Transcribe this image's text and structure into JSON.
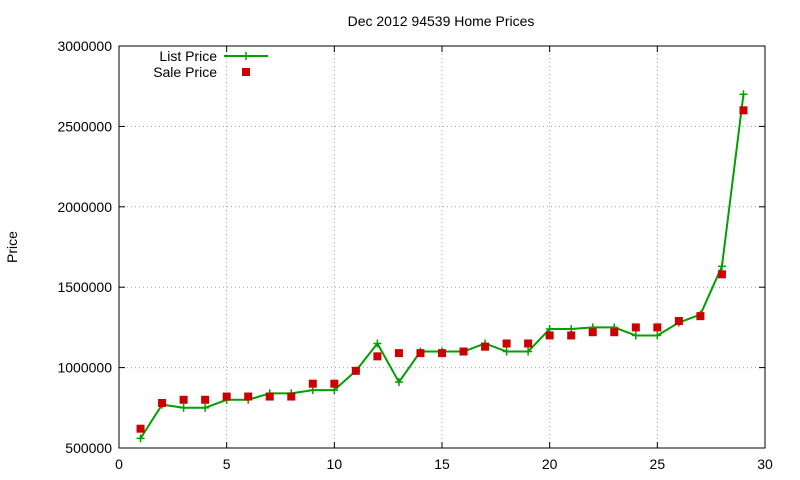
{
  "chart_data": {
    "type": "line",
    "title": "Dec 2012 94539 Home Prices",
    "xlabel": "",
    "ylabel": "Price",
    "xlim": [
      0,
      30
    ],
    "ylim": [
      500000,
      3000000
    ],
    "x_ticks": [
      0,
      5,
      10,
      15,
      20,
      25,
      30
    ],
    "y_ticks": [
      500000,
      1000000,
      1500000,
      2000000,
      2500000,
      3000000
    ],
    "grid": true,
    "legend_position": "top-left",
    "x": [
      1,
      2,
      3,
      4,
      5,
      6,
      7,
      8,
      9,
      10,
      11,
      12,
      13,
      14,
      15,
      16,
      17,
      18,
      19,
      20,
      21,
      22,
      23,
      24,
      25,
      26,
      27,
      28,
      29
    ],
    "series": [
      {
        "name": "List Price",
        "style": "line-points",
        "marker": "plus",
        "color": "#00a000",
        "values": [
          560000,
          770000,
          750000,
          750000,
          800000,
          800000,
          840000,
          840000,
          860000,
          860000,
          980000,
          1150000,
          910000,
          1100000,
          1100000,
          1100000,
          1150000,
          1100000,
          1100000,
          1240000,
          1240000,
          1250000,
          1250000,
          1200000,
          1200000,
          1280000,
          1330000,
          1630000,
          2700000
        ]
      },
      {
        "name": "Sale Price",
        "style": "points",
        "marker": "square",
        "color": "#cc0000",
        "values": [
          620000,
          780000,
          800000,
          800000,
          820000,
          820000,
          820000,
          820000,
          900000,
          900000,
          980000,
          1070000,
          1090000,
          1090000,
          1090000,
          1100000,
          1130000,
          1150000,
          1150000,
          1200000,
          1200000,
          1220000,
          1220000,
          1250000,
          1250000,
          1290000,
          1320000,
          1580000,
          2600000
        ]
      }
    ]
  }
}
